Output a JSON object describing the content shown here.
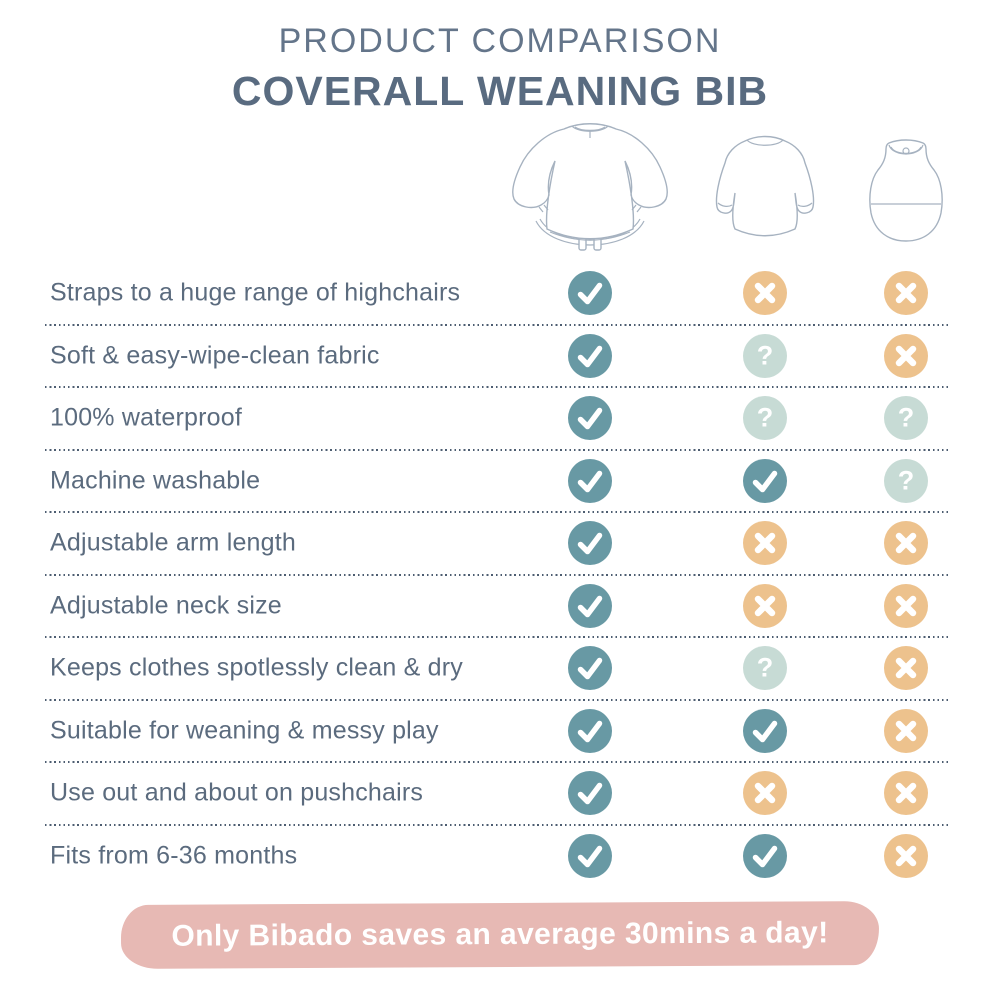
{
  "header": {
    "eyebrow": "PRODUCT COMPARISON",
    "title": "COVERALL WEANING BIB"
  },
  "products": [
    {
      "icon": "coverall-bib-illustration"
    },
    {
      "icon": "smock-bib-illustration"
    },
    {
      "icon": "pocket-bib-illustration"
    }
  ],
  "icons": {
    "yes": {
      "glyph": "check",
      "color": "#6899a4"
    },
    "no": {
      "glyph": "cross",
      "color": "#edc28d"
    },
    "maybe": {
      "glyph": "question",
      "color": "#c7dbd5"
    }
  },
  "table": {
    "rows": [
      {
        "label": "Straps to a huge range of highchairs",
        "values": [
          "yes",
          "no",
          "no"
        ]
      },
      {
        "label": "Soft & easy-wipe-clean fabric",
        "values": [
          "yes",
          "maybe",
          "no"
        ]
      },
      {
        "label": "100% waterproof",
        "values": [
          "yes",
          "maybe",
          "maybe"
        ]
      },
      {
        "label": "Machine washable",
        "values": [
          "yes",
          "yes",
          "maybe"
        ]
      },
      {
        "label": "Adjustable arm length",
        "values": [
          "yes",
          "no",
          "no"
        ]
      },
      {
        "label": "Adjustable neck size",
        "values": [
          "yes",
          "no",
          "no"
        ]
      },
      {
        "label": "Keeps clothes spotlessly clean & dry",
        "values": [
          "yes",
          "maybe",
          "no"
        ]
      },
      {
        "label": "Suitable for weaning & messy play",
        "values": [
          "yes",
          "yes",
          "no"
        ]
      },
      {
        "label": "Use out and about on pushchairs",
        "values": [
          "yes",
          "no",
          "no"
        ]
      },
      {
        "label": "Fits from 6-36 months",
        "values": [
          "yes",
          "yes",
          "no"
        ]
      }
    ]
  },
  "banner": {
    "text": "Only Bibado saves an average 30mins a day!",
    "bg": "#e7b9b4"
  },
  "colors": {
    "title": "#596b80",
    "eyebrow": "#64758a",
    "label_text": "#5b6b7e",
    "separator": "#4d5d71",
    "illustration_line": "#a6b2c0"
  },
  "chart_data": {
    "type": "table",
    "title": "PRODUCT COMPARISON",
    "subtitle": "COVERALL WEANING BIB",
    "columns": [
      "coverall weaning bib (long-sleeve with highchair strap)",
      "long-sleeve smock bib",
      "sleeveless pocket bib"
    ],
    "categories": [
      "Straps to a huge range of highchairs",
      "Soft & easy-wipe-clean fabric",
      "100% waterproof",
      "Machine washable",
      "Adjustable arm length",
      "Adjustable neck size",
      "Keeps clothes spotlessly clean & dry",
      "Suitable for weaning & messy play",
      "Use out and about on pushchairs",
      "Fits from 6-36 months"
    ],
    "values": [
      [
        "yes",
        "no",
        "no"
      ],
      [
        "yes",
        "maybe",
        "no"
      ],
      [
        "yes",
        "maybe",
        "maybe"
      ],
      [
        "yes",
        "yes",
        "maybe"
      ],
      [
        "yes",
        "no",
        "no"
      ],
      [
        "yes",
        "no",
        "no"
      ],
      [
        "yes",
        "maybe",
        "no"
      ],
      [
        "yes",
        "yes",
        "no"
      ],
      [
        "yes",
        "no",
        "no"
      ],
      [
        "yes",
        "yes",
        "no"
      ]
    ],
    "value_legend": {
      "yes": "teal check circle",
      "no": "orange cross circle",
      "maybe": "mint question-mark circle"
    },
    "annotation": "Only Bibado saves an average 30mins a day!"
  }
}
